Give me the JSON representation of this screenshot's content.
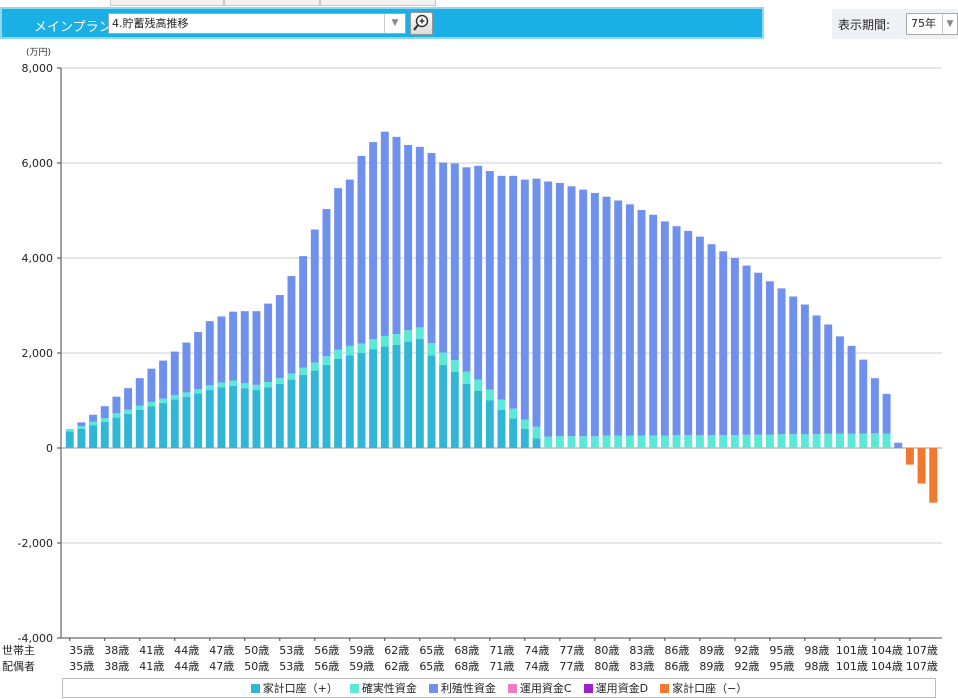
{
  "header": {
    "plan_label": "メインプラン：",
    "plan_value": "4.貯蓄残高推移",
    "period_label": "表示期間:",
    "period_value": "75年"
  },
  "icons": {
    "dropdown": "chevron-down-icon",
    "zoom": "zoom-in-icon"
  },
  "row_labels": {
    "householder": "世帯主",
    "spouse": "配偶者"
  },
  "chart_data": {
    "type": "bar",
    "stacked": true,
    "unit_label": "(万円)",
    "ylim": [
      -4000,
      8000
    ],
    "yticks": [
      "8,000",
      "6,000",
      "4,000",
      "2,000",
      "0",
      "-2,000",
      "-4,000"
    ],
    "grid": true,
    "legend_position": "bottom",
    "age_start": 35,
    "age_end": 109,
    "age_tick_labels": [
      "35歳",
      "38歳",
      "41歳",
      "44歳",
      "47歳",
      "50歳",
      "53歳",
      "56歳",
      "59歳",
      "62歳",
      "65歳",
      "68歳",
      "71歳",
      "74歳",
      "77歳",
      "80歳",
      "83歳",
      "86歳",
      "89歳",
      "92歳",
      "95歳",
      "98歳",
      "101歳",
      "104歳",
      "107歳"
    ],
    "series": [
      {
        "name": "家計口座（+）",
        "color": "#32b6d8",
        "values": [
          350,
          400,
          480,
          550,
          640,
          720,
          800,
          880,
          950,
          1020,
          1080,
          1150,
          1220,
          1280,
          1310,
          1260,
          1220,
          1280,
          1350,
          1440,
          1540,
          1630,
          1750,
          1880,
          1950,
          2000,
          2080,
          2140,
          2170,
          2240,
          2300,
          1950,
          1750,
          1600,
          1350,
          1200,
          1000,
          800,
          620,
          400,
          200,
          0,
          0,
          0,
          0,
          0,
          0,
          0,
          0,
          0,
          0,
          0,
          0,
          0,
          0,
          0,
          0,
          0,
          0,
          0,
          0,
          0,
          0,
          0,
          0,
          0,
          0,
          0,
          0,
          0,
          0,
          0,
          0,
          0,
          0
        ]
      },
      {
        "name": "確実性資金",
        "color": "#5ce8d6",
        "values": [
          50,
          60,
          70,
          80,
          90,
          90,
          90,
          90,
          90,
          90,
          90,
          90,
          100,
          100,
          110,
          110,
          110,
          110,
          120,
          130,
          150,
          170,
          180,
          190,
          200,
          200,
          210,
          220,
          230,
          240,
          240,
          260,
          260,
          250,
          260,
          240,
          230,
          220,
          210,
          200,
          250,
          240,
          250,
          250,
          250,
          250,
          260,
          260,
          260,
          260,
          260,
          260,
          270,
          270,
          270,
          270,
          270,
          270,
          280,
          280,
          280,
          290,
          290,
          290,
          290,
          300,
          300,
          300,
          300,
          310,
          300,
          0,
          0,
          0,
          0
        ]
      },
      {
        "name": "利殖性資金",
        "color": "#7090ee",
        "values": [
          0,
          80,
          150,
          250,
          350,
          450,
          580,
          700,
          800,
          920,
          1050,
          1200,
          1350,
          1390,
          1450,
          1510,
          1550,
          1650,
          1750,
          2050,
          2350,
          2800,
          3100,
          3400,
          3500,
          3950,
          4150,
          4300,
          4150,
          3900,
          3800,
          4000,
          4000,
          4140,
          4300,
          4500,
          4600,
          4710,
          4900,
          5050,
          5220,
          5370,
          5330,
          5260,
          5190,
          5120,
          5030,
          4950,
          4870,
          4750,
          4650,
          4510,
          4400,
          4300,
          4180,
          4020,
          3870,
          3730,
          3560,
          3410,
          3230,
          3070,
          2900,
          2730,
          2500,
          2300,
          2050,
          1850,
          1560,
          1160,
          840,
          110,
          0,
          0,
          0
        ]
      },
      {
        "name": "運用資金C",
        "color": "#f07cc0",
        "values": []
      },
      {
        "name": "運用資金D",
        "color": "#9b22c8",
        "values": []
      },
      {
        "name": "家計口座（−）",
        "color": "#f07830",
        "values": [
          0,
          0,
          0,
          0,
          0,
          0,
          0,
          0,
          0,
          0,
          0,
          0,
          0,
          0,
          0,
          0,
          0,
          0,
          0,
          0,
          0,
          0,
          0,
          0,
          0,
          0,
          0,
          0,
          0,
          0,
          0,
          0,
          0,
          0,
          0,
          0,
          0,
          0,
          0,
          0,
          0,
          0,
          0,
          0,
          0,
          0,
          0,
          0,
          0,
          0,
          0,
          0,
          0,
          0,
          0,
          0,
          0,
          0,
          0,
          0,
          0,
          0,
          0,
          0,
          0,
          0,
          0,
          0,
          0,
          0,
          0,
          0,
          -350,
          -750,
          -1150
        ]
      }
    ]
  }
}
